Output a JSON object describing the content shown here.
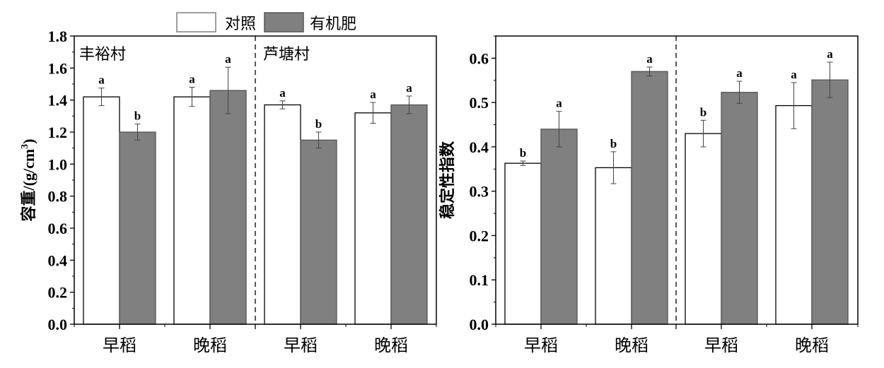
{
  "legend": {
    "control": "对照",
    "organic": "有机肥"
  },
  "colors": {
    "control": "#ffffff",
    "organic": "#808080",
    "axis": "#000000",
    "error": "#444444"
  },
  "chart_data": [
    {
      "type": "bar",
      "ylabel": "容重/(g/cm³)",
      "ylabel_main": "容重/(g/cm",
      "ylabel_sup": "3",
      "ylabel_end": ")",
      "ylim": [
        0,
        1.8
      ],
      "yticks": [
        0.0,
        0.2,
        0.4,
        0.6,
        0.8,
        1.0,
        1.2,
        1.4,
        1.6,
        1.8
      ],
      "tick_decimals": 1,
      "groups": [
        "丰裕村",
        "芦塘村"
      ],
      "categories": [
        "早稻",
        "晚稻",
        "早稻",
        "晚稻"
      ],
      "series": [
        {
          "name": "对照",
          "values": [
            1.42,
            1.42,
            1.37,
            1.32
          ],
          "errors": [
            0.055,
            0.06,
            0.025,
            0.065
          ],
          "labels": [
            "a",
            "a",
            "a",
            "a"
          ]
        },
        {
          "name": "有机肥",
          "values": [
            1.2,
            1.46,
            1.15,
            1.37
          ],
          "errors": [
            0.05,
            0.145,
            0.05,
            0.055
          ],
          "labels": [
            "b",
            "a",
            "b",
            "a"
          ]
        }
      ]
    },
    {
      "type": "bar",
      "ylabel": "稳定性指数",
      "ylim": [
        0,
        0.65
      ],
      "yticks": [
        0.0,
        0.1,
        0.2,
        0.3,
        0.4,
        0.5,
        0.6
      ],
      "tick_decimals": 1,
      "groups": [],
      "categories": [
        "早稻",
        "晚稻",
        "早稻",
        "晚稻"
      ],
      "series": [
        {
          "name": "对照",
          "values": [
            0.363,
            0.353,
            0.43,
            0.493
          ],
          "errors": [
            0.005,
            0.036,
            0.03,
            0.052
          ],
          "labels": [
            "b",
            "b",
            "b",
            "a"
          ]
        },
        {
          "name": "有机肥",
          "values": [
            0.44,
            0.57,
            0.523,
            0.551
          ],
          "errors": [
            0.04,
            0.01,
            0.025,
            0.04
          ],
          "labels": [
            "a",
            "a",
            "a",
            "a"
          ]
        }
      ]
    }
  ]
}
